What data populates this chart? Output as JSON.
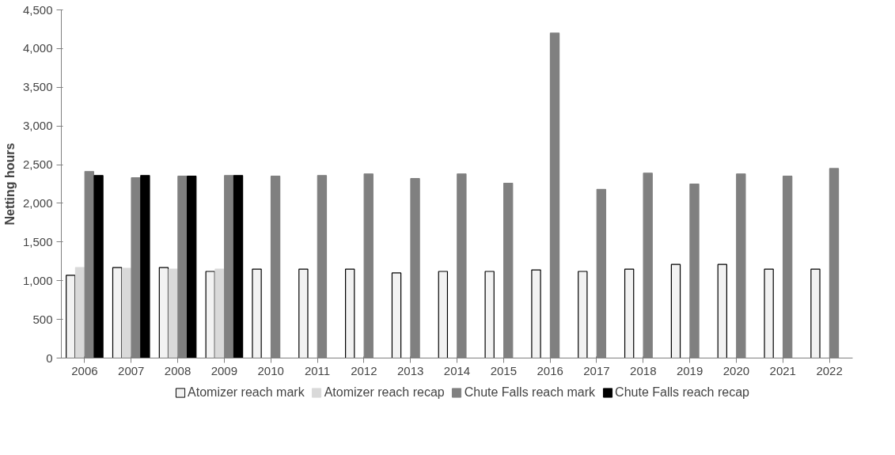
{
  "chart_data": {
    "type": "bar",
    "ylabel": "Netting hours",
    "categories": [
      "2006",
      "2007",
      "2008",
      "2009",
      "2010",
      "2011",
      "2012",
      "2013",
      "2014",
      "2015",
      "2016",
      "2017",
      "2018",
      "2019",
      "2020",
      "2021",
      "2022"
    ],
    "series": [
      {
        "name": "Atomizer reach mark",
        "color": "#f2f2f2",
        "values": [
          1070,
          1170,
          1170,
          1120,
          1150,
          1150,
          1150,
          1100,
          1120,
          1120,
          1140,
          1120,
          1150,
          1210,
          1210,
          1150,
          1150
        ]
      },
      {
        "name": "Atomizer reach recap",
        "color": "#d9d9d9",
        "values": [
          1170,
          1160,
          1150,
          1150,
          null,
          null,
          null,
          null,
          null,
          null,
          null,
          null,
          null,
          null,
          null,
          null,
          null
        ]
      },
      {
        "name": "Chute Falls reach mark",
        "color": "#808080",
        "values": [
          2410,
          2330,
          2350,
          2360,
          2350,
          2360,
          2380,
          2320,
          2380,
          2260,
          4200,
          2180,
          2390,
          2250,
          2380,
          2350,
          2450
        ]
      },
      {
        "name": "Chute Falls reach recap",
        "color": "#000000",
        "values": [
          2360,
          2360,
          2350,
          2360,
          null,
          null,
          null,
          null,
          null,
          null,
          null,
          null,
          null,
          null,
          null,
          null,
          null
        ]
      }
    ],
    "ylim": [
      0,
      4500
    ],
    "yticks": [
      0,
      500,
      {
        "value": 1000,
        "label": "1,000"
      },
      {
        "value": 1500,
        "label": "1,500"
      },
      {
        "value": 2000,
        "label": "2,000"
      },
      {
        "value": 2500,
        "label": "2,500"
      },
      {
        "value": 3000,
        "label": "3,000"
      },
      {
        "value": 3500,
        "label": "3,500"
      },
      {
        "value": 4000,
        "label": "4,000"
      },
      {
        "value": 4500,
        "label": "4,500"
      }
    ],
    "grid": false,
    "legend": "bottom"
  }
}
